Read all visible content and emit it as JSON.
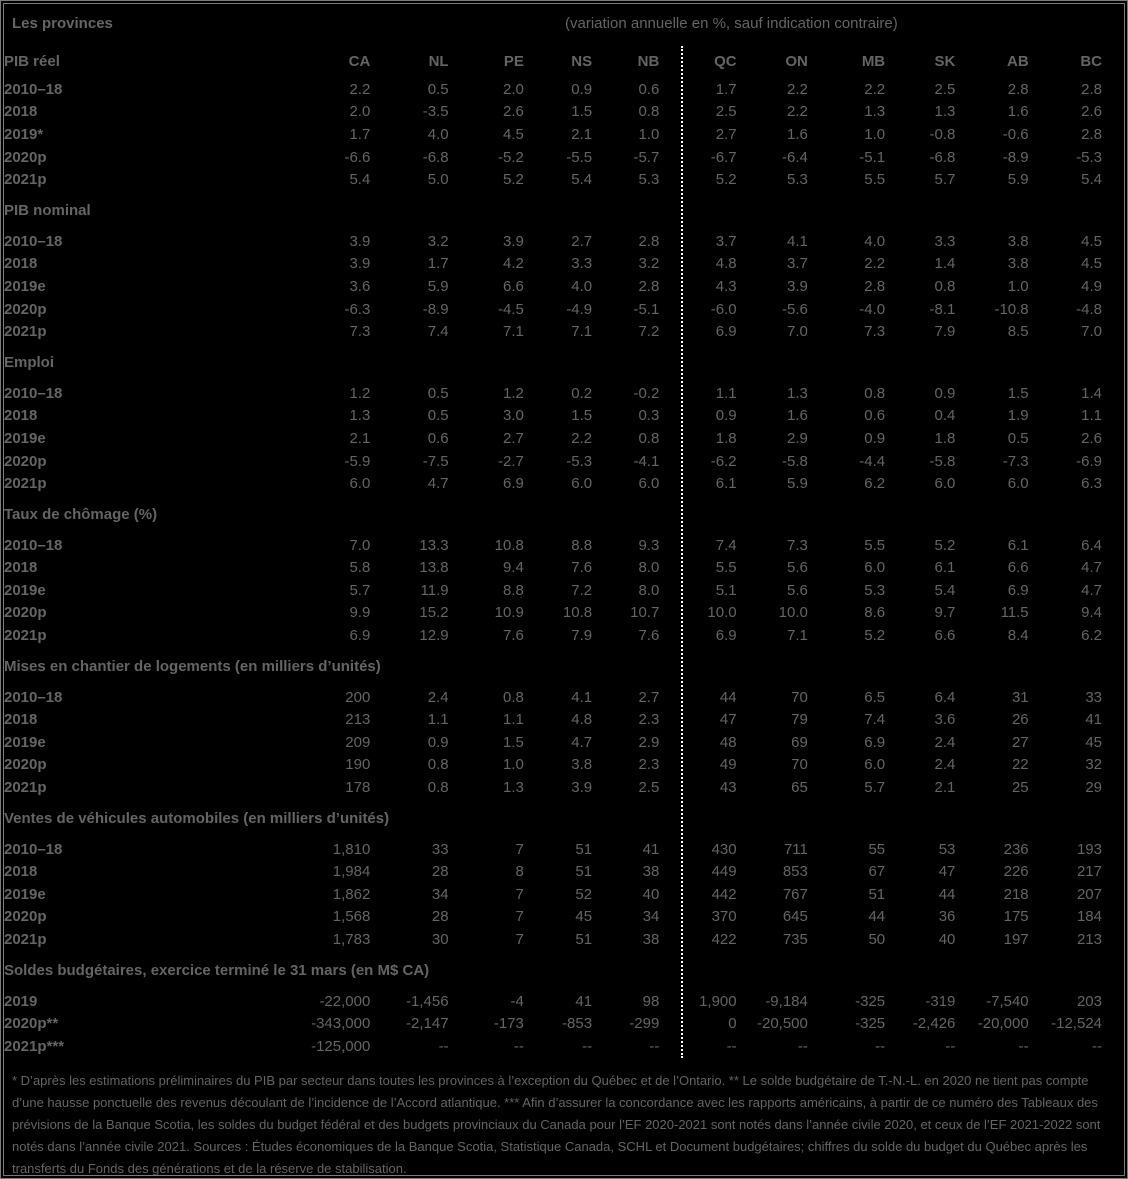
{
  "header": {
    "title": "Les provinces",
    "annotation": "(variation annuelle en %, sauf indication contraire)"
  },
  "colors": {
    "background": "#000000",
    "text": "#646464",
    "border": "#7a7a7a",
    "divider": "#ffffff"
  },
  "table": {
    "columns": [
      "CA",
      "NL",
      "PE",
      "NS",
      "NB",
      "QC",
      "ON",
      "MB",
      "SK",
      "AB",
      "BC"
    ],
    "sections": [
      {
        "name": "PIB réel",
        "rows": [
          {
            "label": "2010–18",
            "values": [
              "2.2",
              "0.5",
              "2.0",
              "0.9",
              "0.6",
              "1.7",
              "2.2",
              "2.2",
              "2.5",
              "2.8",
              "2.8"
            ]
          },
          {
            "label": "2018",
            "values": [
              "2.0",
              "-3.5",
              "2.6",
              "1.5",
              "0.8",
              "2.5",
              "2.2",
              "1.3",
              "1.3",
              "1.6",
              "2.6"
            ]
          },
          {
            "label": "2019*",
            "values": [
              "1.7",
              "4.0",
              "4.5",
              "2.1",
              "1.0",
              "2.7",
              "1.6",
              "1.0",
              "-0.8",
              "-0.6",
              "2.8"
            ]
          },
          {
            "label": "2020p",
            "values": [
              "-6.6",
              "-6.8",
              "-5.2",
              "-5.5",
              "-5.7",
              "-6.7",
              "-6.4",
              "-5.1",
              "-6.8",
              "-8.9",
              "-5.3"
            ]
          },
          {
            "label": "2021p",
            "values": [
              "5.4",
              "5.0",
              "5.2",
              "5.4",
              "5.3",
              "5.2",
              "5.3",
              "5.5",
              "5.7",
              "5.9",
              "5.4"
            ]
          }
        ]
      },
      {
        "name": "PIB nominal",
        "rows": [
          {
            "label": "2010–18",
            "values": [
              "3.9",
              "3.2",
              "3.9",
              "2.7",
              "2.8",
              "3.7",
              "4.1",
              "4.0",
              "3.3",
              "3.8",
              "4.5"
            ]
          },
          {
            "label": "2018",
            "values": [
              "3.9",
              "1.7",
              "4.2",
              "3.3",
              "3.2",
              "4.8",
              "3.7",
              "2.2",
              "1.4",
              "3.8",
              "4.5"
            ]
          },
          {
            "label": "2019e",
            "values": [
              "3.6",
              "5.9",
              "6.6",
              "4.0",
              "2.8",
              "4.3",
              "3.9",
              "2.8",
              "0.8",
              "1.0",
              "4.9"
            ]
          },
          {
            "label": "2020p",
            "values": [
              "-6.3",
              "-8.9",
              "-4.5",
              "-4.9",
              "-5.1",
              "-6.0",
              "-5.6",
              "-4.0",
              "-8.1",
              "-10.8",
              "-4.8"
            ]
          },
          {
            "label": "2021p",
            "values": [
              "7.3",
              "7.4",
              "7.1",
              "7.1",
              "7.2",
              "6.9",
              "7.0",
              "7.3",
              "7.9",
              "8.5",
              "7.0"
            ]
          }
        ]
      },
      {
        "name": "Emploi",
        "rows": [
          {
            "label": "2010–18",
            "values": [
              "1.2",
              "0.5",
              "1.2",
              "0.2",
              "-0.2",
              "1.1",
              "1.3",
              "0.8",
              "0.9",
              "1.5",
              "1.4"
            ]
          },
          {
            "label": "2018",
            "values": [
              "1.3",
              "0.5",
              "3.0",
              "1.5",
              "0.3",
              "0.9",
              "1.6",
              "0.6",
              "0.4",
              "1.9",
              "1.1"
            ]
          },
          {
            "label": "2019e",
            "values": [
              "2.1",
              "0.6",
              "2.7",
              "2.2",
              "0.8",
              "1.8",
              "2.9",
              "0.9",
              "1.8",
              "0.5",
              "2.6"
            ]
          },
          {
            "label": "2020p",
            "values": [
              "-5.9",
              "-7.5",
              "-2.7",
              "-5.3",
              "-4.1",
              "-6.2",
              "-5.8",
              "-4.4",
              "-5.8",
              "-7.3",
              "-6.9"
            ]
          },
          {
            "label": "2021p",
            "values": [
              "6.0",
              "4.7",
              "6.9",
              "6.0",
              "6.0",
              "6.1",
              "5.9",
              "6.2",
              "6.0",
              "6.0",
              "6.3"
            ]
          }
        ]
      },
      {
        "name": "Taux de chômage (%)",
        "rows": [
          {
            "label": "2010–18",
            "values": [
              "7.0",
              "13.3",
              "10.8",
              "8.8",
              "9.3",
              "7.4",
              "7.3",
              "5.5",
              "5.2",
              "6.1",
              "6.4"
            ]
          },
          {
            "label": "2018",
            "values": [
              "5.8",
              "13.8",
              "9.4",
              "7.6",
              "8.0",
              "5.5",
              "5.6",
              "6.0",
              "6.1",
              "6.6",
              "4.7"
            ]
          },
          {
            "label": "2019e",
            "values": [
              "5.7",
              "11.9",
              "8.8",
              "7.2",
              "8.0",
              "5.1",
              "5.6",
              "5.3",
              "5.4",
              "6.9",
              "4.7"
            ]
          },
          {
            "label": "2020p",
            "values": [
              "9.9",
              "15.2",
              "10.9",
              "10.8",
              "10.7",
              "10.0",
              "10.0",
              "8.6",
              "9.7",
              "11.5",
              "9.4"
            ]
          },
          {
            "label": "2021p",
            "values": [
              "6.9",
              "12.9",
              "7.6",
              "7.9",
              "7.6",
              "6.9",
              "7.1",
              "5.2",
              "6.6",
              "8.4",
              "6.2"
            ]
          }
        ]
      },
      {
        "name": "Mises en chantier de logements (en milliers d’unités)",
        "rows": [
          {
            "label": "2010–18",
            "values": [
              "200",
              "2.4",
              "0.8",
              "4.1",
              "2.7",
              "44",
              "70",
              "6.5",
              "6.4",
              "31",
              "33"
            ]
          },
          {
            "label": "2018",
            "values": [
              "213",
              "1.1",
              "1.1",
              "4.8",
              "2.3",
              "47",
              "79",
              "7.4",
              "3.6",
              "26",
              "41"
            ]
          },
          {
            "label": "2019e",
            "values": [
              "209",
              "0.9",
              "1.5",
              "4.7",
              "2.9",
              "48",
              "69",
              "6.9",
              "2.4",
              "27",
              "45"
            ]
          },
          {
            "label": "2020p",
            "values": [
              "190",
              "0.8",
              "1.0",
              "3.8",
              "2.3",
              "49",
              "70",
              "6.0",
              "2.4",
              "22",
              "32"
            ]
          },
          {
            "label": "2021p",
            "values": [
              "178",
              "0.8",
              "1.3",
              "3.9",
              "2.5",
              "43",
              "65",
              "5.7",
              "2.1",
              "25",
              "29"
            ]
          }
        ]
      },
      {
        "name": "Ventes de véhicules automobiles (en milliers d’unités)",
        "rows": [
          {
            "label": "2010–18",
            "values": [
              "1,810",
              "33",
              "7",
              "51",
              "41",
              "430",
              "711",
              "55",
              "53",
              "236",
              "193"
            ]
          },
          {
            "label": "2018",
            "values": [
              "1,984",
              "28",
              "8",
              "51",
              "38",
              "449",
              "853",
              "67",
              "47",
              "226",
              "217"
            ]
          },
          {
            "label": "2019e",
            "values": [
              "1,862",
              "34",
              "7",
              "52",
              "40",
              "442",
              "767",
              "51",
              "44",
              "218",
              "207"
            ]
          },
          {
            "label": "2020p",
            "values": [
              "1,568",
              "28",
              "7",
              "45",
              "34",
              "370",
              "645",
              "44",
              "36",
              "175",
              "184"
            ]
          },
          {
            "label": "2021p",
            "values": [
              "1,783",
              "30",
              "7",
              "51",
              "38",
              "422",
              "735",
              "50",
              "40",
              "197",
              "213"
            ]
          }
        ]
      },
      {
        "name": "Soldes budgétaires, exercice terminé le 31 mars (en M$ CA)",
        "rows": [
          {
            "label": "2019",
            "values": [
              "-22,000",
              "-1,456",
              "-4",
              "41",
              "98",
              "1,900",
              "-9,184",
              "-325",
              "-319",
              "-7,540",
              "203"
            ]
          },
          {
            "label": "2020p**",
            "values": [
              "-343,000",
              "-2,147",
              "-173",
              "-853",
              "-299",
              "0",
              "-20,500",
              "-325",
              "-2,426",
              "-20,000",
              "-12,524"
            ]
          },
          {
            "label": "2021p***",
            "values": [
              "-125,000",
              "--",
              "--",
              "--",
              "--",
              "--",
              "--",
              "--",
              "--",
              "--",
              "--"
            ]
          }
        ]
      }
    ]
  },
  "footnote": "* D’après les estimations préliminaires du PIB par secteur dans toutes les provinces à l’exception du Québec et de l’Ontario. ** Le solde budgétaire de T.-N.-L. en 2020 ne tient pas compte d’une hausse ponctuelle des revenus découlant de l’incidence de l’Accord atlantique. *** Afin d’assurer la concordance avec les rapports américains, à partir de ce numéro des Tableaux des prévisions de la Banque Scotia, les soldes du budget fédéral et des budgets provinciaux du Canada pour l’EF 2020-2021 sont notés dans l’année civile 2020, et ceux de l’EF 2021-2022 sont notés dans l’année civile 2021. Sources : Études économiques de la Banque Scotia, Statistique Canada, SCHL et Document budgétaires; chiffres du solde du budget du Québec après les transferts du Fonds des générations et de la réserve de stabilisation."
}
